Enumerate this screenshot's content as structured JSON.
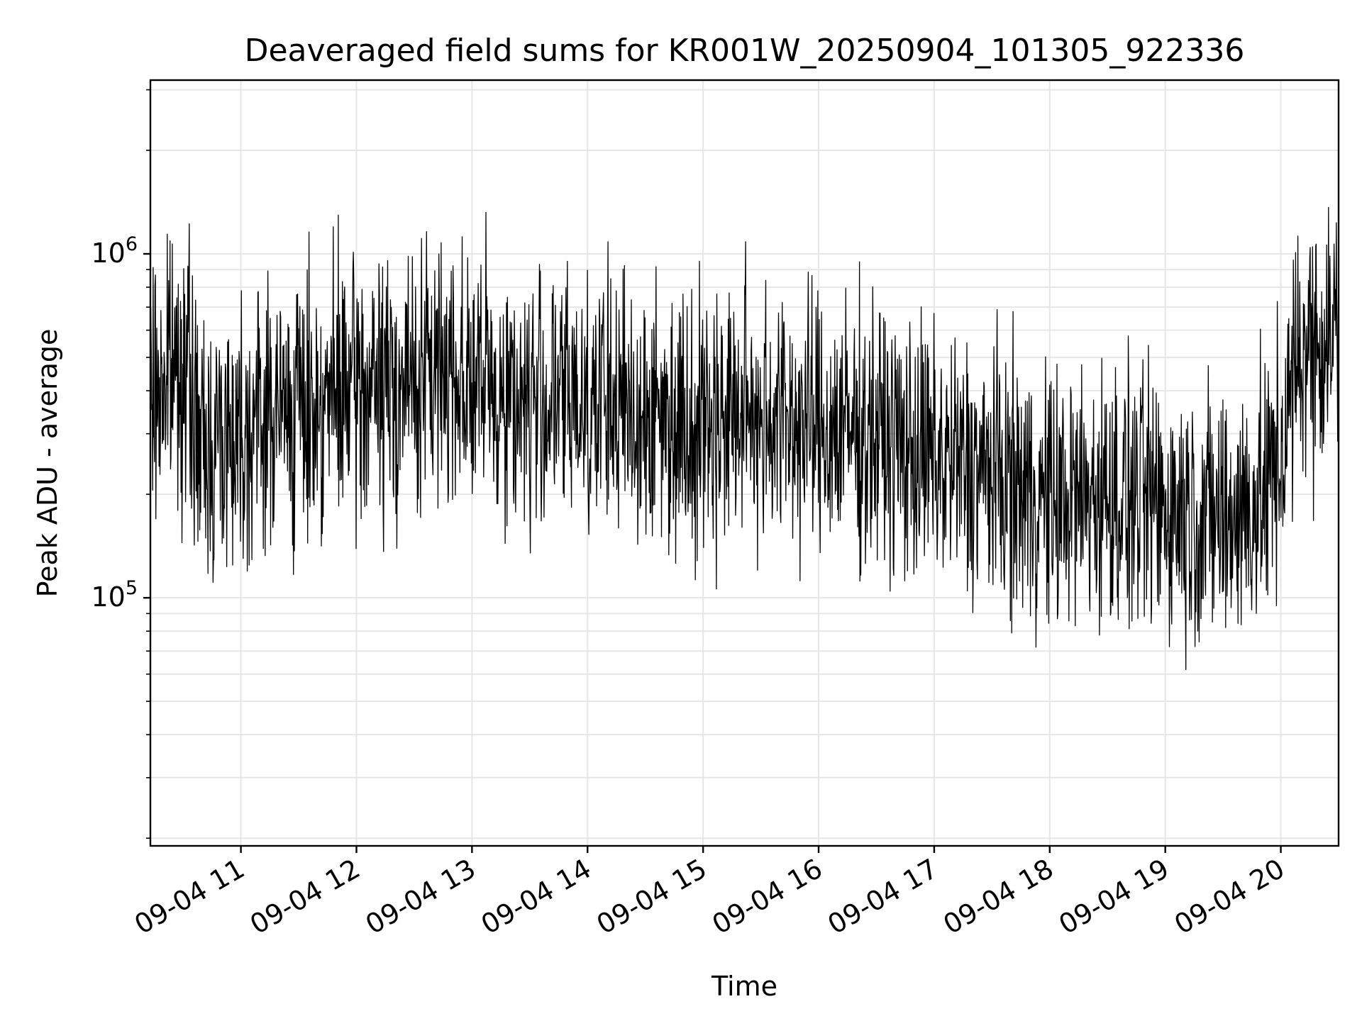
{
  "chart_data": {
    "type": "line",
    "title": "Deaveraged field sums for KR001W_20250904_101305_922336",
    "xlabel": "Time",
    "ylabel": "Peak ADU - average",
    "yscale": "log",
    "ylim": [
      19000,
      3200000
    ],
    "xlim": [
      "2025-09-04T10:13",
      "2025-09-04T20:30"
    ],
    "grid": true,
    "line_color": "#000000",
    "grid_color": "#e6e6e6",
    "x_ticks": [
      "09-04 11",
      "09-04 12",
      "09-04 13",
      "09-04 14",
      "09-04 15",
      "09-04 16",
      "09-04 17",
      "09-04 18",
      "09-04 19",
      "09-04 20"
    ],
    "y_ticks": [
      {
        "value": 100000,
        "base": "10",
        "exp": "5"
      },
      {
        "value": 1000000,
        "base": "10",
        "exp": "6"
      }
    ],
    "series": [
      {
        "x": [
          "2025-09-04T10:13",
          "2025-09-04T10:30",
          "2025-09-04T10:40",
          "2025-09-04T10:50",
          "2025-09-04T11:00",
          "2025-09-04T11:30",
          "2025-09-04T12:00",
          "2025-09-04T12:30",
          "2025-09-04T12:50",
          "2025-09-04T13:00",
          "2025-09-04T13:30",
          "2025-09-04T14:00",
          "2025-09-04T14:30",
          "2025-09-04T15:00",
          "2025-09-04T15:30",
          "2025-09-04T16:00",
          "2025-09-04T16:30",
          "2025-09-04T17:00",
          "2025-09-04T17:30",
          "2025-09-04T18:00",
          "2025-09-04T18:30",
          "2025-09-04T19:00",
          "2025-09-04T19:30",
          "2025-09-04T19:50",
          "2025-09-04T20:00",
          "2025-09-04T20:10",
          "2025-09-04T20:20",
          "2025-09-04T20:30"
        ],
        "y": [
          380000,
          500000,
          260000,
          300000,
          320000,
          360000,
          400000,
          420000,
          480000,
          420000,
          370000,
          380000,
          340000,
          330000,
          350000,
          310000,
          300000,
          250000,
          230000,
          190000,
          200000,
          185000,
          170000,
          190000,
          260000,
          520000,
          560000,
          600000
        ]
      }
    ]
  }
}
